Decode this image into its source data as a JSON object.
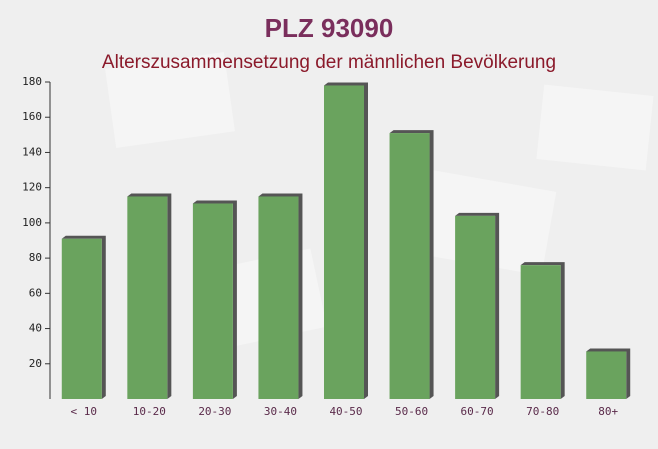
{
  "chart_data": {
    "type": "bar",
    "title": "PLZ 93090",
    "subtitle": "Alterszusammensetzung der männlichen Bevölkerung",
    "categories": [
      "< 10",
      "10-20",
      "20-30",
      "30-40",
      "40-50",
      "50-60",
      "60-70",
      "70-80",
      "80+"
    ],
    "values": [
      91,
      115,
      111,
      115,
      178,
      151,
      104,
      76,
      27
    ],
    "color": "#6aa35e",
    "ylim": [
      0,
      180
    ],
    "yticks": [
      20,
      40,
      60,
      80,
      100,
      120,
      140,
      160,
      180
    ],
    "grid": false
  }
}
